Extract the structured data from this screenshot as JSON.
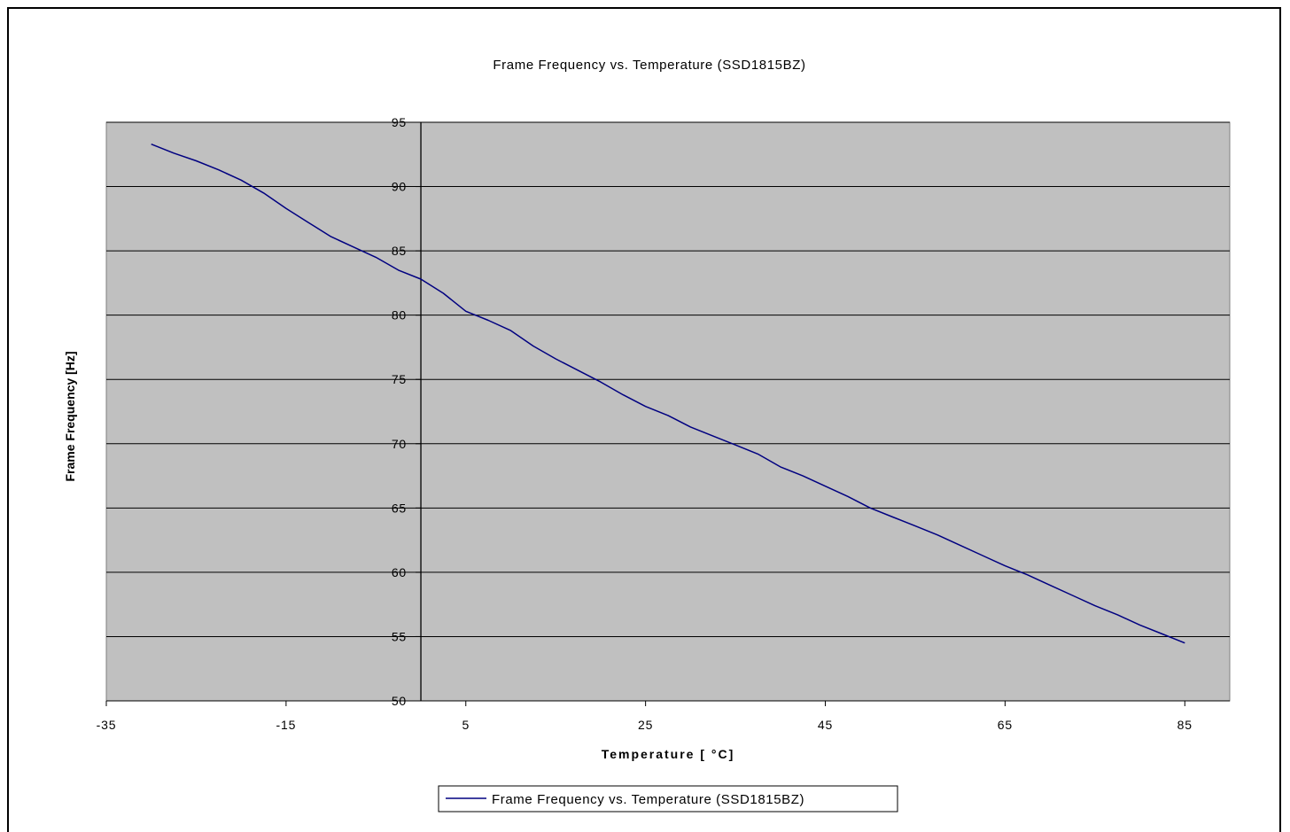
{
  "chart_data": {
    "type": "line",
    "title": "Frame Frequency vs. Temperature (SSD1815BZ)",
    "xlabel": "Temperature [ °C]",
    "ylabel": "Frame Frequency [Hz]",
    "xlim": [
      -35,
      90
    ],
    "ylim": [
      50,
      95
    ],
    "x_ticks": [
      "-35",
      "-15",
      "5",
      "25",
      "45",
      "65",
      "85"
    ],
    "y_ticks": [
      "50",
      "55",
      "60",
      "65",
      "70",
      "75",
      "80",
      "85",
      "90",
      "95"
    ],
    "y_axis_crosses_at_x": 0,
    "grid": "horizontal",
    "plot_background": "#c0c0c0",
    "legend_position": "bottom",
    "series": [
      {
        "name": "Frame Frequency vs. Temperature (SSD1815BZ)",
        "color": "#000080",
        "x": [
          -30,
          -27.5,
          -25,
          -22.5,
          -20,
          -17.5,
          -15,
          -12.5,
          -10,
          -7.5,
          -5,
          -2.5,
          0,
          2.5,
          5,
          7.5,
          10,
          12.5,
          15,
          17.5,
          20,
          22.5,
          25,
          27.5,
          30,
          32.5,
          35,
          37.5,
          40,
          42.5,
          45,
          47.5,
          50,
          52.5,
          55,
          57.5,
          60,
          62.5,
          65,
          67.5,
          70,
          72.5,
          75,
          77.5,
          80,
          82.5,
          85
        ],
        "y": [
          93.3,
          92.6,
          92.0,
          91.3,
          90.5,
          89.5,
          88.3,
          87.2,
          86.1,
          85.3,
          84.5,
          83.5,
          82.8,
          81.7,
          80.3,
          79.6,
          78.8,
          77.6,
          76.6,
          75.7,
          74.8,
          73.8,
          72.9,
          72.2,
          71.3,
          70.6,
          69.9,
          69.2,
          68.2,
          67.5,
          66.7,
          65.9,
          65.0,
          64.3,
          63.6,
          62.9,
          62.1,
          61.3,
          60.5,
          59.8,
          59.0,
          58.2,
          57.4,
          56.7,
          55.9,
          55.2,
          54.5
        ]
      }
    ]
  }
}
